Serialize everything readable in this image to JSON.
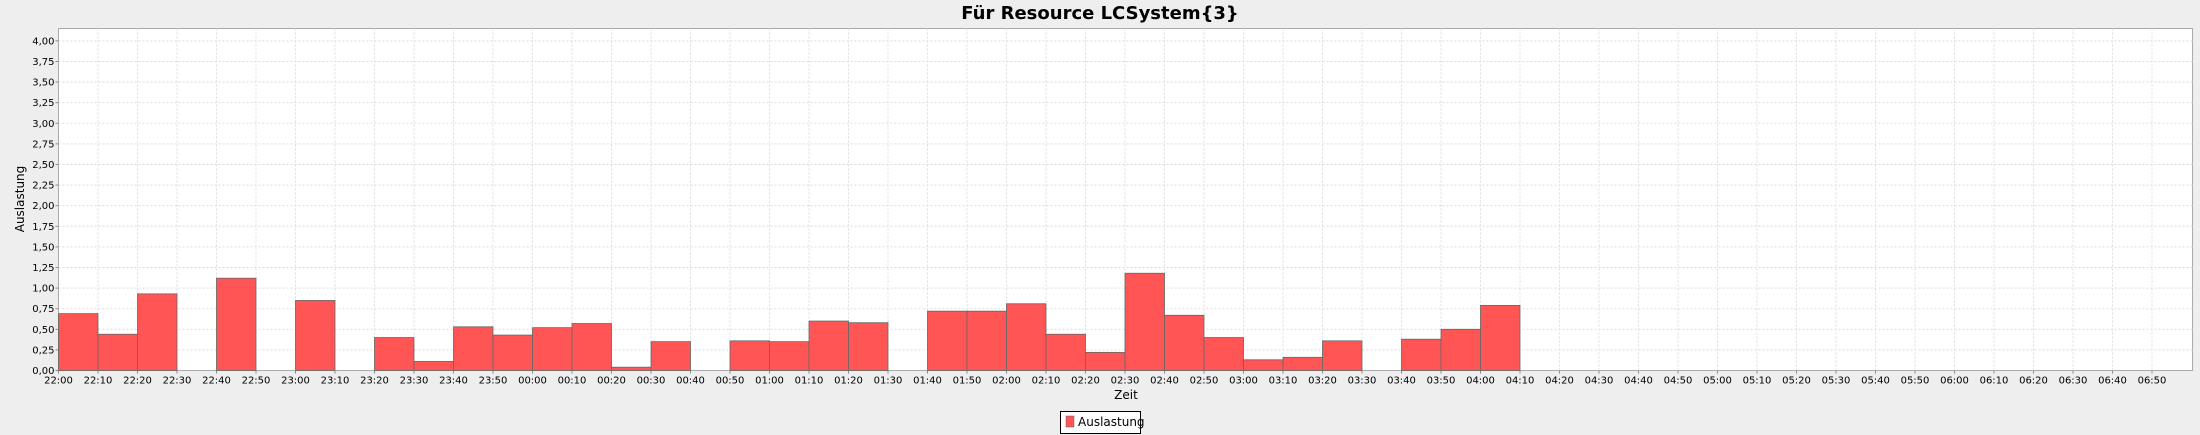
{
  "chart_data": {
    "type": "bar",
    "title": "Für Resource LCSystem{3}",
    "xlabel": "Zeit",
    "ylabel": "Auslastung",
    "ylim": [
      0,
      4.15
    ],
    "yticks": [
      "0,00",
      "0,25",
      "0,50",
      "0,75",
      "1,00",
      "1,25",
      "1,50",
      "1,75",
      "2,00",
      "2,25",
      "2,50",
      "2,75",
      "3,00",
      "3,25",
      "3,50",
      "3,75",
      "4,00"
    ],
    "grid": true,
    "legend_position": "bottom-center",
    "colors": {
      "bar": "#ff5555",
      "bar_edge": "#666666",
      "plot_bg": "#ffffff",
      "page_bg": "#eeeeee",
      "grid": "#dddddd"
    },
    "categories": [
      "22:00",
      "22:10",
      "22:20",
      "22:30",
      "22:40",
      "22:50",
      "23:00",
      "23:10",
      "23:20",
      "23:30",
      "23:40",
      "23:50",
      "00:00",
      "00:10",
      "00:20",
      "00:30",
      "00:40",
      "00:50",
      "01:00",
      "01:10",
      "01:20",
      "01:30",
      "01:40",
      "01:50",
      "02:00",
      "02:10",
      "02:20",
      "02:30",
      "02:40",
      "02:50",
      "03:00",
      "03:10",
      "03:20",
      "03:30",
      "03:40",
      "03:50",
      "04:00",
      "04:10",
      "04:20",
      "04:30",
      "04:40",
      "04:50",
      "05:00",
      "05:10",
      "05:20",
      "05:30",
      "05:40",
      "05:50",
      "06:00",
      "06:10",
      "06:20",
      "06:30",
      "06:40",
      "06:50"
    ],
    "series": [
      {
        "name": "Auslastung",
        "values": [
          0.69,
          0.44,
          0.93,
          0,
          1.12,
          0,
          0.85,
          0,
          0.4,
          0.11,
          0.53,
          0.43,
          0.52,
          0.57,
          0.04,
          0.35,
          0,
          0.36,
          0.35,
          0.6,
          0.58,
          0,
          0.72,
          0.72,
          0.81,
          0.44,
          0.22,
          1.18,
          0.67,
          0.4,
          0.13,
          0.16,
          0.36,
          0,
          0.38,
          0.5,
          0.79,
          0,
          0,
          0,
          0,
          0,
          0,
          0,
          0,
          0,
          0,
          0,
          0,
          0,
          0,
          0,
          0,
          0
        ]
      }
    ]
  }
}
